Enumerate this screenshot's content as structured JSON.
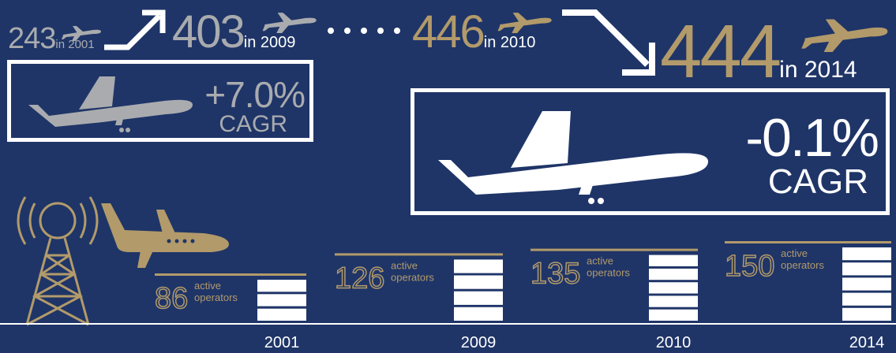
{
  "fleet": [
    {
      "value": "243",
      "label": "in 2001",
      "color": "#a9abae"
    },
    {
      "value": "403",
      "label": "in 2009",
      "color": "#a9abae"
    },
    {
      "value": "446",
      "label": "in 2010",
      "color": "#b29a6a"
    },
    {
      "value": "444",
      "label": "in 2014",
      "color": "#b29a6a"
    }
  ],
  "cagr": [
    {
      "value": "+7.0%",
      "label": "CAGR",
      "color": "#a9abae"
    },
    {
      "value": "-0.1%",
      "label": "CAGR",
      "color": "#ffffff"
    }
  ],
  "colors": {
    "background": "#1f3568",
    "gold": "#b29a6a",
    "grey": "#a9abae",
    "white": "#ffffff"
  },
  "icons": [
    "airplane-icon",
    "business-jet-icon",
    "radio-tower-icon",
    "arrow-up-right-icon",
    "arrow-down-right-icon"
  ],
  "chart_data": {
    "type": "bar",
    "categories": [
      "2001",
      "2009",
      "2010",
      "2014"
    ],
    "values": [
      86,
      126,
      135,
      150
    ],
    "value_labels": [
      "86",
      "126",
      "135",
      "150"
    ],
    "value_suffix": [
      "active",
      "operators"
    ]
  }
}
